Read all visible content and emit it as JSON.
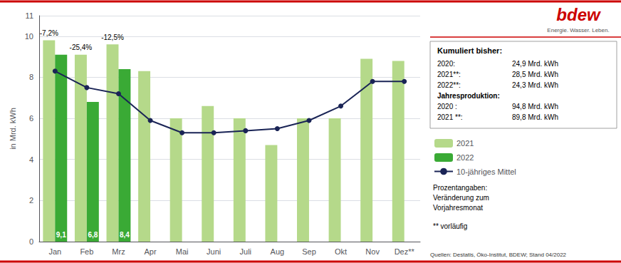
{
  "chart_data": {
    "type": "bar",
    "categories": [
      "Jan",
      "Feb",
      "Mrz",
      "Apr",
      "Mai",
      "Juni",
      "Juli",
      "Aug",
      "Sep",
      "Okt",
      "Nov",
      "Dez**"
    ],
    "series": [
      {
        "name": "2021",
        "type": "bar",
        "color": "#b5d98a",
        "values": [
          9.8,
          9.1,
          9.6,
          8.3,
          6.0,
          6.6,
          6.0,
          4.7,
          6.0,
          6.0,
          8.9,
          8.8
        ]
      },
      {
        "name": "2022",
        "type": "bar",
        "color": "#3aaa35",
        "values": [
          9.1,
          6.8,
          8.4,
          null,
          null,
          null,
          null,
          null,
          null,
          null,
          null,
          null
        ],
        "value_labels": [
          "9,1",
          "6,8",
          "8,4",
          null,
          null,
          null,
          null,
          null,
          null,
          null,
          null,
          null
        ]
      },
      {
        "name": "10-jähriges Mittel",
        "type": "line",
        "color": "#1a2456",
        "marker": "circle",
        "values": [
          8.3,
          7.5,
          7.2,
          5.9,
          5.3,
          5.3,
          5.4,
          5.5,
          5.9,
          6.6,
          7.8,
          7.8
        ]
      }
    ],
    "ylabel": "in Mrd. kWh",
    "ylim": [
      0,
      11
    ],
    "yticks": [
      0,
      2,
      4,
      6,
      8,
      10
    ],
    "grid": true,
    "legend": "right",
    "annotations": [
      {
        "text": "-7,2%",
        "category": "Jan",
        "series": "2021"
      },
      {
        "text": "-25,4%",
        "category": "Feb",
        "series": "2021"
      },
      {
        "text": "-12,5%",
        "category": "Mrz",
        "series": "2021"
      }
    ],
    "logo": {
      "text": "bdew",
      "subtitle": "Energie. Wasser. Leben.",
      "color": "#cc0000"
    },
    "info_box": {
      "title": "Kumuliert bisher:",
      "rows": [
        [
          "2020:",
          "24,9 Mrd. kWh"
        ],
        [
          "2021**:",
          "28,5 Mrd. kWh"
        ],
        [
          "2022**:",
          "24,3 Mrd. kWh"
        ],
        [
          "Jahresproduktion:"
        ],
        [
          "2020 :",
          "94,8 Mrd. kWh"
        ],
        [
          "2021 **:",
          "89,8 Mrd. kWh"
        ]
      ]
    },
    "notes": [
      "Prozentangaben:",
      "Veränderung zum",
      "Vorjahresmonat"
    ],
    "footnote": "** vorläufig",
    "source": "Quellen: Destatis, Öko-Institut, BDEW; Stand 04/2022"
  }
}
